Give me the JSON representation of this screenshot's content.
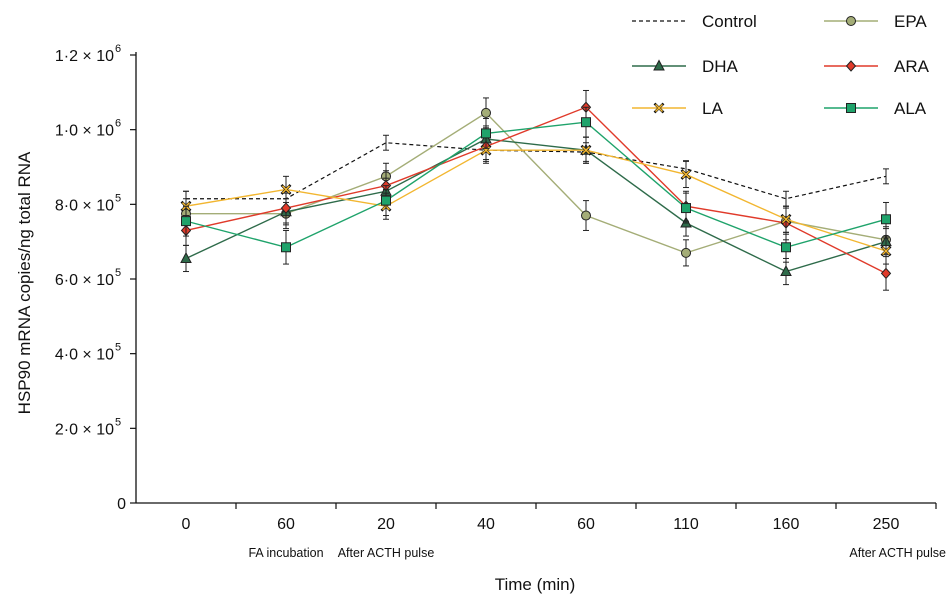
{
  "chart_data": {
    "type": "line",
    "title": "",
    "xlabel": "Time (min)",
    "ylabel": "HSP90 mRNA copies/ng total RNA",
    "categories": [
      "0",
      "60",
      "20",
      "40",
      "60",
      "110",
      "160",
      "250"
    ],
    "phase_labels": [
      {
        "category_index": 1,
        "text": "FA incubation"
      },
      {
        "category_index": 2,
        "text": "After ACTH pulse"
      },
      {
        "category_index": 7,
        "text": "After ACTH pulse"
      }
    ],
    "ylim": [
      0,
      1200000
    ],
    "yticks": [
      {
        "value": 0,
        "mantissa": "0",
        "exp": ""
      },
      {
        "value": 200000,
        "mantissa": "2·0 × 10",
        "exp": "5"
      },
      {
        "value": 400000,
        "mantissa": "4·0 × 10",
        "exp": "5"
      },
      {
        "value": 600000,
        "mantissa": "6·0 × 10",
        "exp": "5"
      },
      {
        "value": 800000,
        "mantissa": "8·0 × 10",
        "exp": "5"
      },
      {
        "value": 1000000,
        "mantissa": "1·0 × 10",
        "exp": "6"
      },
      {
        "value": 1200000,
        "mantissa": "1·2 × 10",
        "exp": "6"
      }
    ],
    "grid": false,
    "legend_position": "top-right",
    "series": [
      {
        "name": "Control",
        "color": "#111111",
        "dashed": true,
        "marker": "none",
        "values": [
          815000,
          815000,
          965000,
          945000,
          940000,
          895000,
          815000,
          875000
        ],
        "errors": [
          20000,
          20000,
          20000,
          25000,
          25000,
          22000,
          20000,
          20000
        ]
      },
      {
        "name": "EPA",
        "color": "#a4ad77",
        "dashed": false,
        "marker": "circle",
        "values": [
          775000,
          775000,
          875000,
          1045000,
          770000,
          670000,
          755000,
          705000
        ],
        "errors": [
          40000,
          40000,
          35000,
          40000,
          40000,
          35000,
          35000,
          35000
        ]
      },
      {
        "name": "DHA",
        "color": "#2e6b4a",
        "dashed": false,
        "marker": "triangle",
        "values": [
          655000,
          780000,
          835000,
          975000,
          945000,
          750000,
          620000,
          700000
        ],
        "errors": [
          35000,
          35000,
          35000,
          35000,
          35000,
          35000,
          35000,
          35000
        ]
      },
      {
        "name": "ARA",
        "color": "#e03a2a",
        "dashed": false,
        "marker": "diamond",
        "values": [
          730000,
          790000,
          850000,
          955000,
          1060000,
          795000,
          750000,
          615000
        ],
        "errors": [
          40000,
          40000,
          40000,
          40000,
          45000,
          40000,
          45000,
          45000
        ]
      },
      {
        "name": "LA",
        "color": "#f2b630",
        "dashed": false,
        "marker": "x",
        "values": [
          795000,
          840000,
          795000,
          945000,
          945000,
          880000,
          760000,
          675000
        ],
        "errors": [
          40000,
          35000,
          35000,
          35000,
          35000,
          35000,
          35000,
          35000
        ]
      },
      {
        "name": "ALA",
        "color": "#1fa36b",
        "dashed": false,
        "marker": "square",
        "values": [
          755000,
          685000,
          810000,
          990000,
          1020000,
          790000,
          685000,
          760000
        ],
        "errors": [
          40000,
          45000,
          40000,
          40000,
          40000,
          40000,
          40000,
          45000
        ]
      }
    ]
  }
}
